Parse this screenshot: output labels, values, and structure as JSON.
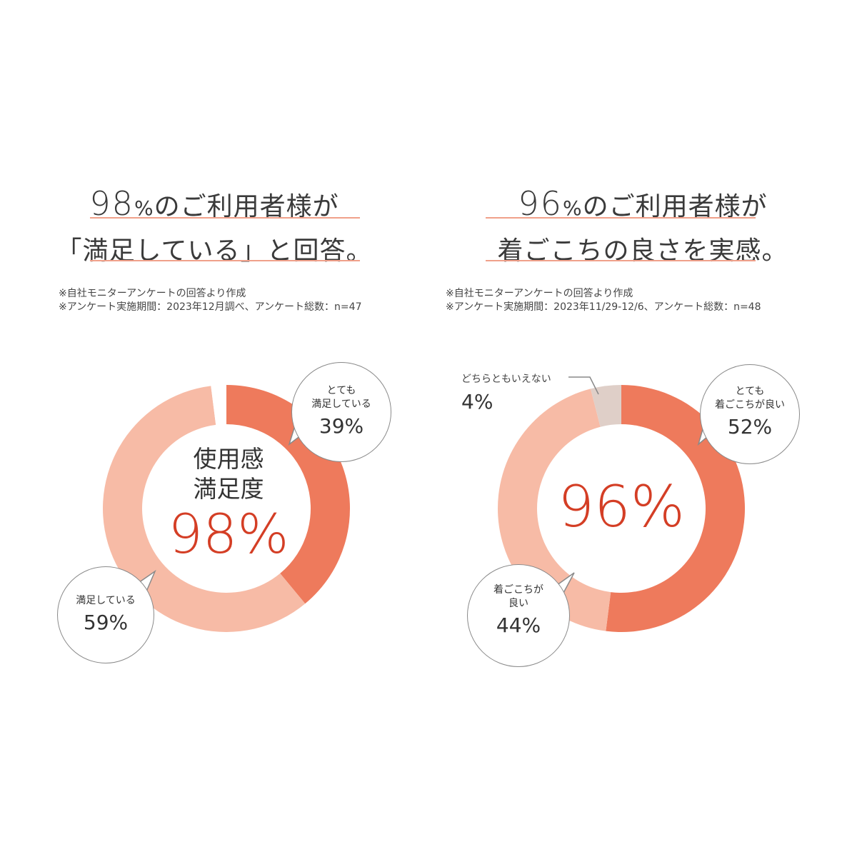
{
  "colors": {
    "very": "#ee7a5c",
    "satisfied": "#f7bba6",
    "neutral": "#dfcfc8",
    "gap": "#ffffff",
    "accent": "#d43e25",
    "rule": "#f0a08a"
  },
  "left": {
    "headline": {
      "line1_num": "98",
      "line1_pct": "%",
      "line1_rest": "のご利用者様が",
      "line2": "「満足している」と回答。"
    },
    "notes": [
      "※自社モニターアンケートの回答より作成",
      "※アンケート実施期間：2023年12月調べ、アンケート総数：n=47"
    ],
    "center_label_1": "使用感",
    "center_label_2": "満足度",
    "center_value": "98%",
    "bubbles": [
      {
        "label_1": "とても",
        "label_2": "満足している",
        "value": "39%"
      },
      {
        "label_1": "満足している",
        "value": "59%"
      }
    ]
  },
  "right": {
    "headline": {
      "line1_num": "96",
      "line1_pct": "%",
      "line1_rest": "のご利用者様が",
      "line2": "着ごこちの良さを実感。"
    },
    "notes": [
      "※自社モニターアンケートの回答より作成",
      "※アンケート実施期間：2023年11/29-12/6、アンケート総数：n=48"
    ],
    "center_value": "96%",
    "bubbles": [
      {
        "label_1": "とても",
        "label_2": "着ごこちが良い",
        "value": "52%"
      },
      {
        "label_1": "着ごこちが",
        "label_2": "良い",
        "value": "44%"
      }
    ],
    "neutral_label": "どちらともいえない",
    "neutral_value": "4%"
  },
  "chart_data": [
    {
      "type": "pie",
      "categories": [
        "とても満足している",
        "満足している",
        ""
      ],
      "values": [
        39,
        59,
        2
      ]
    },
    {
      "type": "pie",
      "categories": [
        "とても着ごこちが良い",
        "着ごこちが良い",
        "どちらともいえない"
      ],
      "values": [
        52,
        44,
        4
      ]
    }
  ]
}
